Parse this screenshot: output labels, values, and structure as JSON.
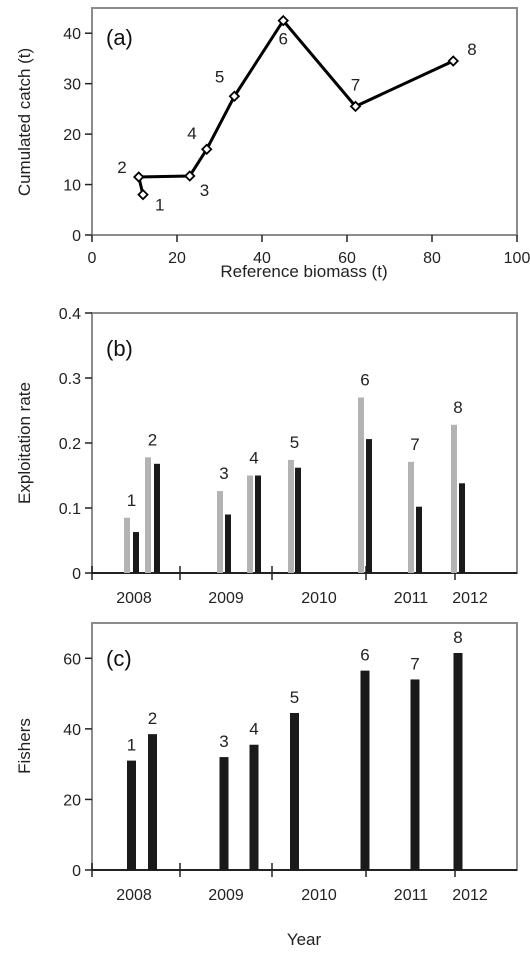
{
  "chart_data": [
    {
      "type": "scatter",
      "panel_label": "(a)",
      "xlabel": "Reference biomass (t)",
      "ylabel": "Cumulated catch (t)",
      "xlim": [
        0,
        100
      ],
      "ylim": [
        0,
        45
      ],
      "x_ticks": [
        0,
        20,
        40,
        60,
        80,
        100
      ],
      "y_ticks": [
        0,
        10,
        20,
        30,
        40
      ],
      "line_order": [
        "1",
        "2",
        "3",
        "4",
        "5",
        "6",
        "7",
        "8"
      ],
      "points": [
        {
          "label": "1",
          "x": 12,
          "y": 8
        },
        {
          "label": "2",
          "x": 11,
          "y": 11.5
        },
        {
          "label": "3",
          "x": 23,
          "y": 11.7
        },
        {
          "label": "4",
          "x": 27,
          "y": 17
        },
        {
          "label": "5",
          "x": 33.5,
          "y": 27.5
        },
        {
          "label": "6",
          "x": 45,
          "y": 42.5
        },
        {
          "label": "7",
          "x": 62,
          "y": 25.5
        },
        {
          "label": "8",
          "x": 85,
          "y": 34.5
        }
      ],
      "colors": {
        "line": "#000000",
        "marker_fill": "#ffffff"
      }
    },
    {
      "type": "bar",
      "panel_label": "(b)",
      "xlabel": "",
      "ylabel": "Exploitation rate",
      "ylim": [
        0,
        0.4
      ],
      "y_ticks": [
        0,
        0.1,
        0.2,
        0.3,
        0.4
      ],
      "y_tick_labels": [
        "0",
        "0.1",
        "0.2",
        "0.3",
        "0.4"
      ],
      "categories": [
        "2008",
        "2009",
        "2010",
        "2011",
        "2012"
      ],
      "bars": [
        {
          "label": "1",
          "gray": 0.085,
          "black": 0.063
        },
        {
          "label": "2",
          "gray": 0.178,
          "black": 0.168
        },
        {
          "label": "3",
          "gray": 0.126,
          "black": 0.09
        },
        {
          "label": "4",
          "gray": 0.15,
          "black": 0.15
        },
        {
          "label": "5",
          "gray": 0.174,
          "black": 0.162
        },
        {
          "label": "6",
          "gray": 0.27,
          "black": 0.206
        },
        {
          "label": "7",
          "gray": 0.171,
          "black": 0.102
        },
        {
          "label": "8",
          "gray": 0.228,
          "black": 0.138
        }
      ],
      "colors": {
        "gray": "#b3b3b3",
        "black": "#1a1a1a"
      }
    },
    {
      "type": "bar",
      "panel_label": "(c)",
      "xlabel": "Year",
      "ylabel": "Fishers",
      "ylim": [
        0,
        70
      ],
      "y_ticks": [
        0,
        20,
        40,
        60
      ],
      "categories": [
        "2008",
        "2009",
        "2010",
        "2011",
        "2012"
      ],
      "bars": [
        {
          "label": "1",
          "value": 31
        },
        {
          "label": "2",
          "value": 38.5
        },
        {
          "label": "3",
          "value": 32
        },
        {
          "label": "4",
          "value": 35.5
        },
        {
          "label": "5",
          "value": 44.5
        },
        {
          "label": "6",
          "value": 56.5
        },
        {
          "label": "7",
          "value": 54
        },
        {
          "label": "8",
          "value": 61.5
        }
      ],
      "colors": {
        "bar": "#1a1a1a"
      }
    }
  ]
}
